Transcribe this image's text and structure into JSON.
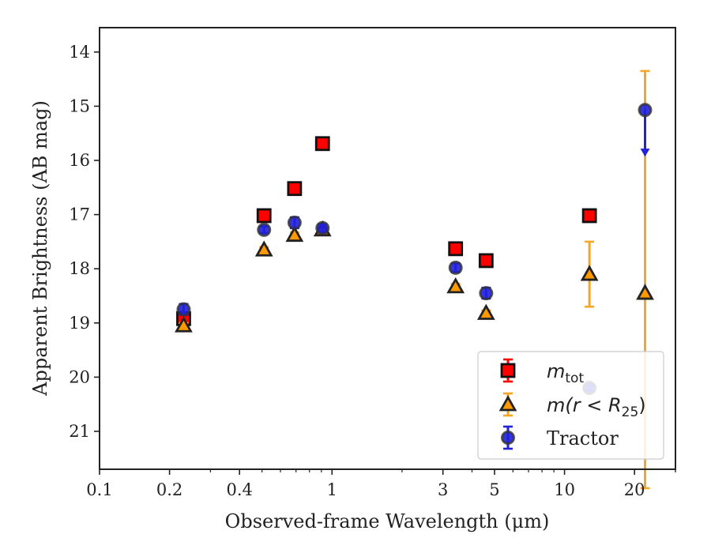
{
  "chart_data": {
    "type": "scatter",
    "title": "",
    "xlabel": "Observed-frame Wavelength (μm)",
    "ylabel": "Apparent Brightness (AB mag)",
    "x_scale": "log",
    "xlim": [
      0.1,
      30
    ],
    "ylim": [
      21.7,
      13.55
    ],
    "y_inverted": true,
    "x_ticks": [
      {
        "value": 0.1,
        "label": "0.1"
      },
      {
        "value": 0.2,
        "label": "0.2"
      },
      {
        "value": 0.4,
        "label": "0.4"
      },
      {
        "value": 1,
        "label": "1"
      },
      {
        "value": 3,
        "label": "3"
      },
      {
        "value": 5,
        "label": "5"
      },
      {
        "value": 10,
        "label": "10"
      },
      {
        "value": 20,
        "label": "20"
      }
    ],
    "y_ticks": [
      14,
      15,
      16,
      17,
      18,
      19,
      20,
      21
    ],
    "grid": false,
    "legend_position": "lower-right",
    "legend_labels": {
      "mtot": {
        "base": "m",
        "sub": "tot"
      },
      "mr": {
        "pre": "m(r < R",
        "sub": "25",
        "post": ")"
      },
      "tractor": "Tractor"
    },
    "series": [
      {
        "key": "mtot",
        "marker": "square",
        "color": "#ff0000",
        "edge": "#111111",
        "error_color": "#ff0000",
        "points": [
          {
            "x": 0.23,
            "y": 18.92,
            "err": 0.08
          },
          {
            "x": 0.51,
            "y": 17.02,
            "err": 0.05
          },
          {
            "x": 0.69,
            "y": 16.52,
            "err": 0.05
          },
          {
            "x": 0.91,
            "y": 15.69,
            "err": 0.05
          },
          {
            "x": 3.4,
            "y": 17.63,
            "err": 0.05
          },
          {
            "x": 4.6,
            "y": 17.85,
            "err": 0.05
          },
          {
            "x": 12.8,
            "y": 17.02,
            "err": 0.05
          }
        ]
      },
      {
        "key": "mr",
        "marker": "triangle",
        "color": "#ff9900",
        "edge": "#222222",
        "error_color": "#f5a623",
        "points": [
          {
            "x": 0.23,
            "y": 19.05,
            "err": 0.05
          },
          {
            "x": 0.51,
            "y": 17.65,
            "err": 0.05
          },
          {
            "x": 0.69,
            "y": 17.38,
            "err": 0.05
          },
          {
            "x": 0.91,
            "y": 17.28,
            "err": 0.05
          },
          {
            "x": 3.4,
            "y": 18.33,
            "err": 0.05
          },
          {
            "x": 4.6,
            "y": 18.82,
            "err": 0.05
          },
          {
            "x": 12.8,
            "y": 18.1,
            "err": 0.6
          },
          {
            "x": 22.2,
            "y": 18.45,
            "err_low": 4.1,
            "err_high": 3.6
          }
        ]
      },
      {
        "key": "tractor",
        "marker": "circle",
        "color": "#1f1fdd",
        "edge": "#333333",
        "error_color": "#2222dd",
        "points": [
          {
            "x": 0.23,
            "y": 18.75,
            "err": 0.1
          },
          {
            "x": 0.51,
            "y": 17.28,
            "err": 0.06
          },
          {
            "x": 0.69,
            "y": 17.15,
            "err": 0.1
          },
          {
            "x": 0.91,
            "y": 17.25,
            "err": 0.07
          },
          {
            "x": 3.4,
            "y": 17.98,
            "err": 0.08
          },
          {
            "x": 4.6,
            "y": 18.45,
            "err": 0.1
          },
          {
            "x": 12.8,
            "y": 20.2,
            "err": 0.05
          },
          {
            "x": 22.2,
            "y": 15.07,
            "upper_limit_to": 15.9
          }
        ]
      }
    ]
  }
}
